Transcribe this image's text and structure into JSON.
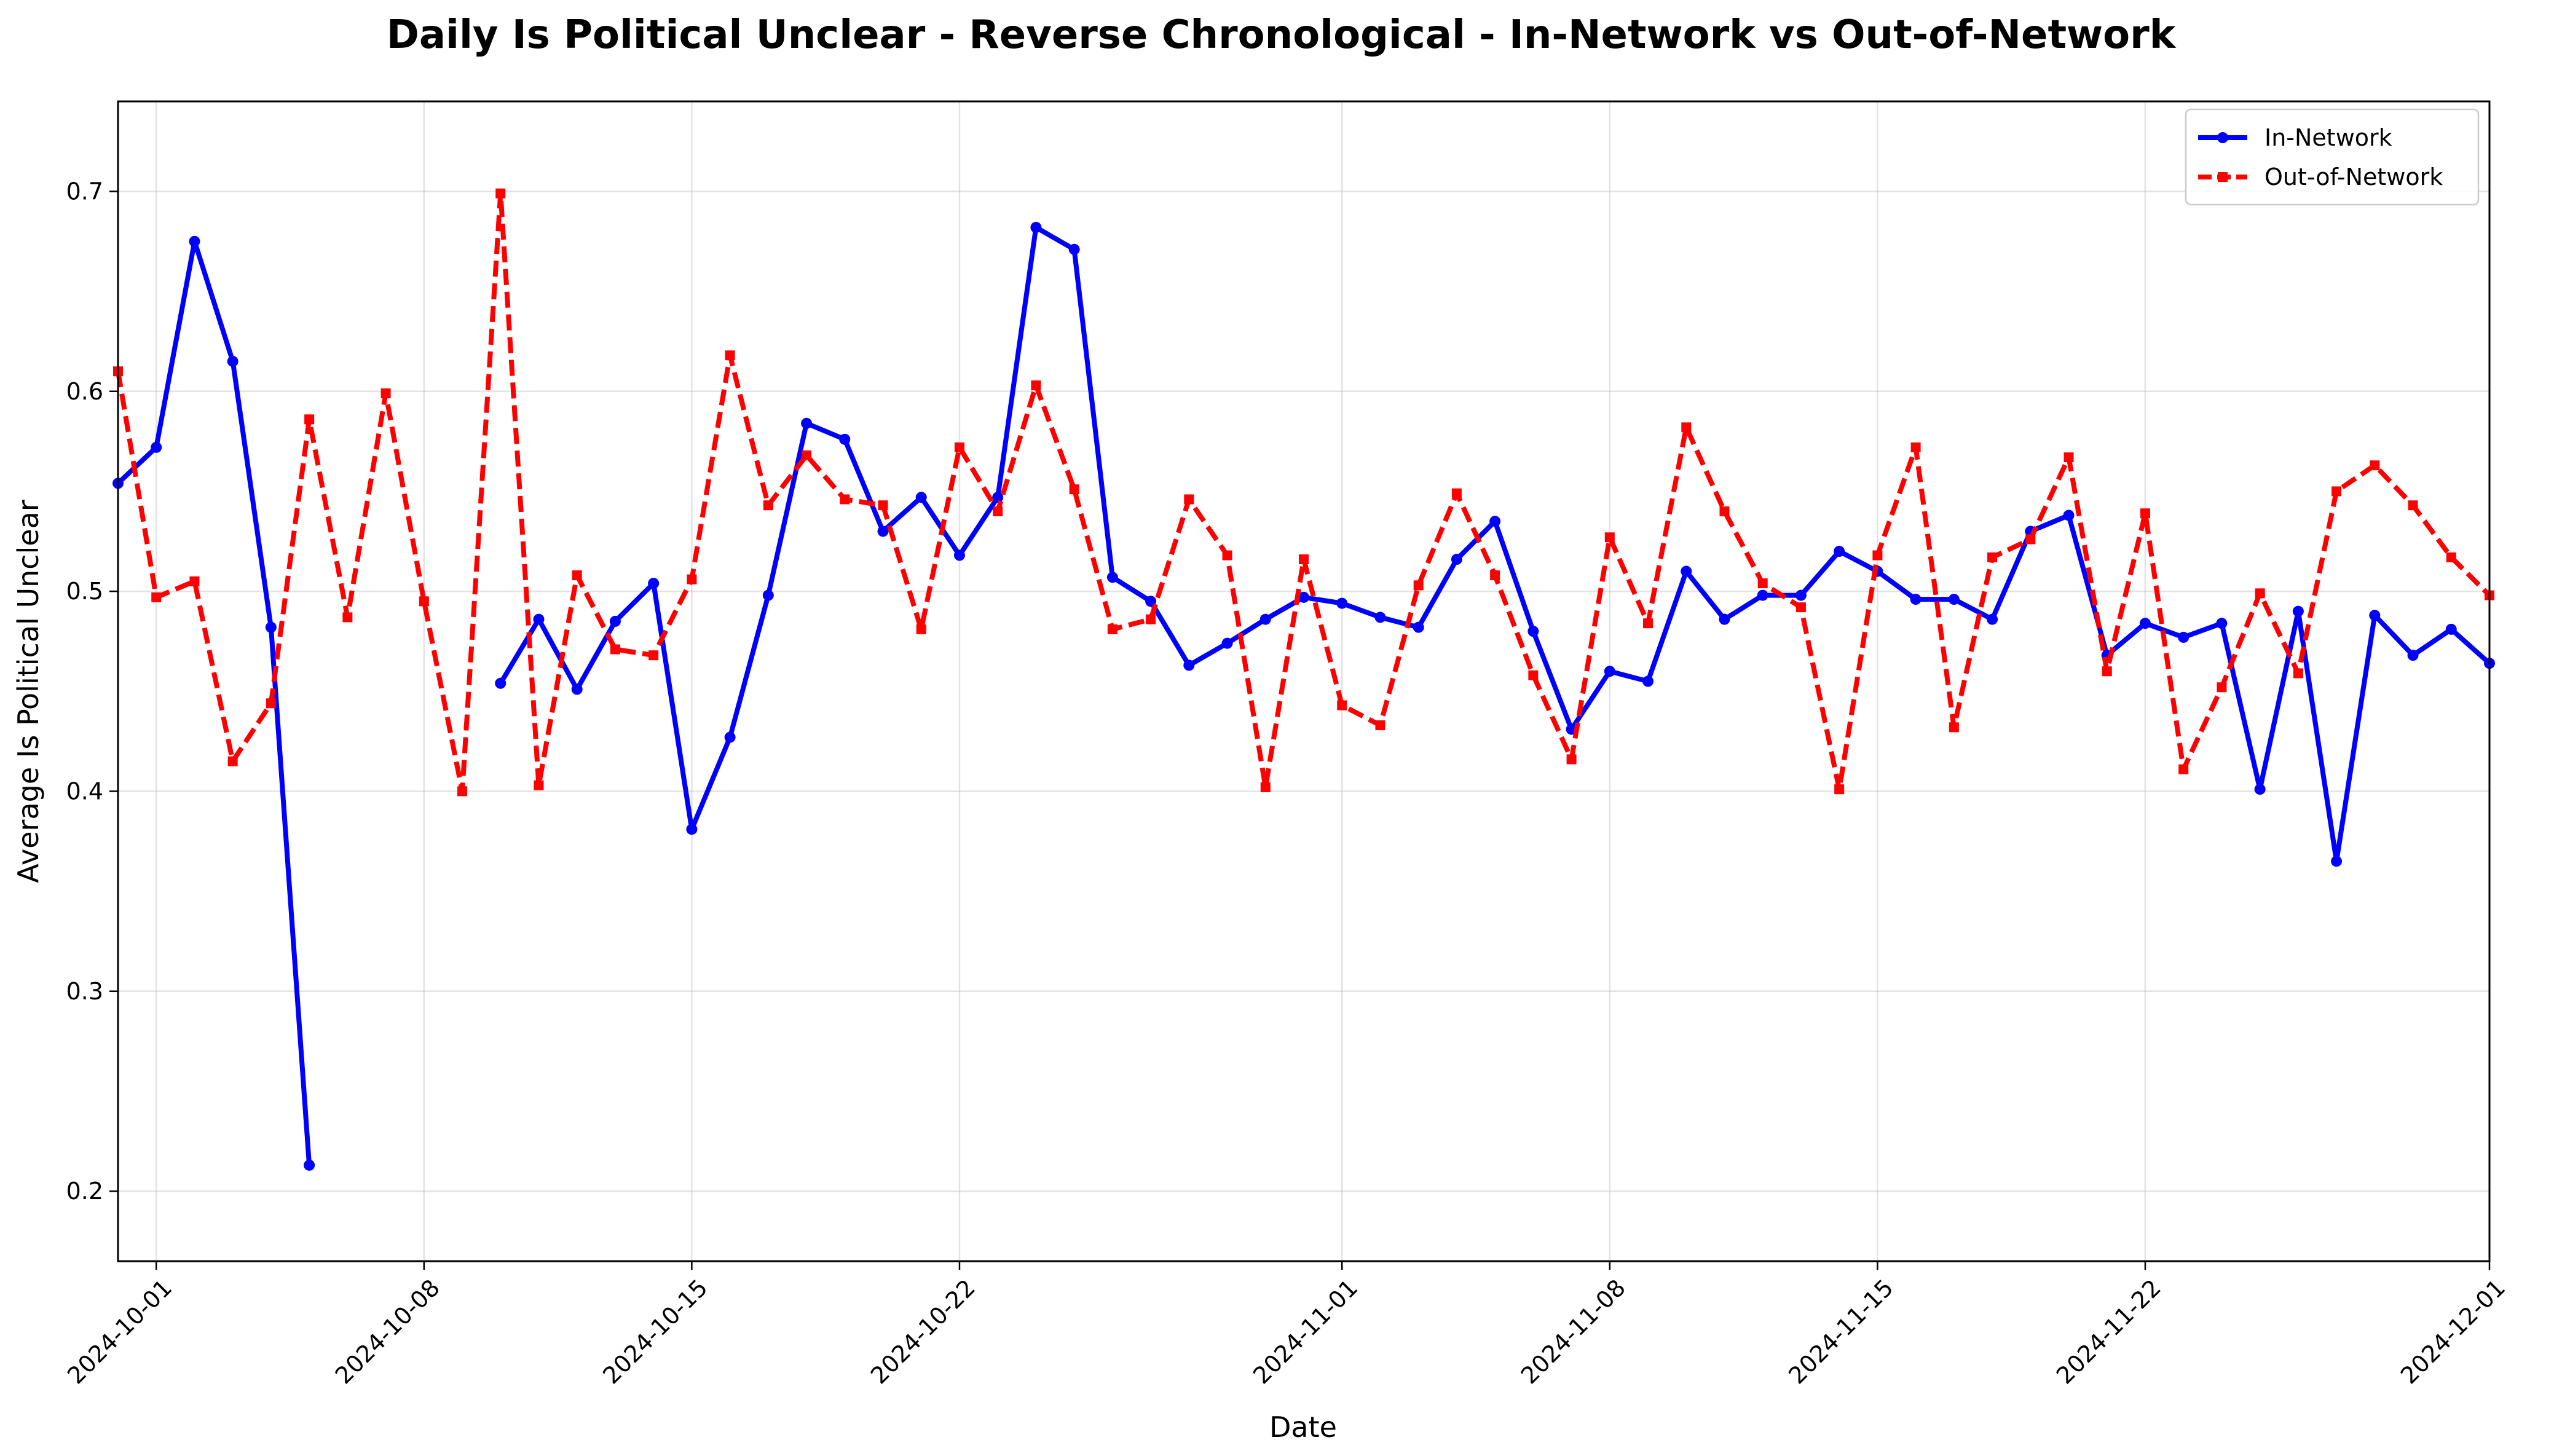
{
  "chart_data": {
    "type": "line",
    "title": "Daily Is Political Unclear - Reverse Chronological - In-Network vs Out-of-Network",
    "xlabel": "Date",
    "ylabel": "Average Is Political Unclear",
    "xlim": [
      "2024-09-30",
      "2024-12-01"
    ],
    "ylim": [
      0.165,
      0.745
    ],
    "x_ticks": [
      "2024-10-01",
      "2024-10-08",
      "2024-10-15",
      "2024-10-22",
      "2024-11-01",
      "2024-11-08",
      "2024-11-15",
      "2024-11-22",
      "2024-12-01"
    ],
    "y_ticks": [
      "0.2",
      "0.3",
      "0.4",
      "0.5",
      "0.6",
      "0.7"
    ],
    "grid": true,
    "legend_position": "top-right",
    "series": [
      {
        "name": "In-Network",
        "color": "#0000ff",
        "style": "solid",
        "marker": "circle",
        "points": [
          [
            "2024-09-30",
            0.554
          ],
          [
            "2024-10-01",
            0.572
          ],
          [
            "2024-10-02",
            0.675
          ],
          [
            "2024-10-03",
            0.615
          ],
          [
            "2024-10-04",
            0.482
          ],
          [
            "2024-10-05",
            0.213
          ],
          null,
          [
            "2024-10-10",
            0.454
          ],
          [
            "2024-10-11",
            0.486
          ],
          [
            "2024-10-12",
            0.451
          ],
          [
            "2024-10-13",
            0.485
          ],
          [
            "2024-10-14",
            0.504
          ],
          [
            "2024-10-15",
            0.381
          ],
          [
            "2024-10-16",
            0.427
          ],
          [
            "2024-10-17",
            0.498
          ],
          [
            "2024-10-18",
            0.584
          ],
          [
            "2024-10-19",
            0.576
          ],
          [
            "2024-10-20",
            0.53
          ],
          [
            "2024-10-21",
            0.547
          ],
          [
            "2024-10-22",
            0.518
          ],
          [
            "2024-10-23",
            0.547
          ],
          [
            "2024-10-24",
            0.682
          ],
          [
            "2024-10-25",
            0.671
          ],
          [
            "2024-10-26",
            0.507
          ],
          [
            "2024-10-27",
            0.495
          ],
          [
            "2024-10-28",
            0.463
          ],
          [
            "2024-10-29",
            0.474
          ],
          [
            "2024-10-30",
            0.486
          ],
          [
            "2024-10-31",
            0.497
          ],
          [
            "2024-11-01",
            0.494
          ],
          [
            "2024-11-02",
            0.487
          ],
          [
            "2024-11-03",
            0.482
          ],
          [
            "2024-11-04",
            0.516
          ],
          [
            "2024-11-05",
            0.535
          ],
          [
            "2024-11-06",
            0.48
          ],
          [
            "2024-11-07",
            0.431
          ],
          [
            "2024-11-08",
            0.46
          ],
          [
            "2024-11-09",
            0.455
          ],
          [
            "2024-11-10",
            0.51
          ],
          [
            "2024-11-11",
            0.486
          ],
          [
            "2024-11-12",
            0.498
          ],
          [
            "2024-11-13",
            0.498
          ],
          [
            "2024-11-14",
            0.52
          ],
          [
            "2024-11-15",
            0.51
          ],
          [
            "2024-11-16",
            0.496
          ],
          [
            "2024-11-17",
            0.496
          ],
          [
            "2024-11-18",
            0.486
          ],
          [
            "2024-11-19",
            0.53
          ],
          [
            "2024-11-20",
            0.538
          ],
          [
            "2024-11-21",
            0.468
          ],
          [
            "2024-11-22",
            0.484
          ],
          [
            "2024-11-23",
            0.477
          ],
          [
            "2024-11-24",
            0.484
          ],
          [
            "2024-11-25",
            0.401
          ],
          [
            "2024-11-26",
            0.49
          ],
          [
            "2024-11-27",
            0.365
          ],
          [
            "2024-11-28",
            0.488
          ],
          [
            "2024-11-29",
            0.468
          ],
          [
            "2024-11-30",
            0.481
          ],
          [
            "2024-12-01",
            0.464
          ]
        ]
      },
      {
        "name": "Out-of-Network",
        "color": "#ff0000",
        "style": "dashed",
        "marker": "square",
        "points": [
          [
            "2024-09-30",
            0.61
          ],
          [
            "2024-10-01",
            0.497
          ],
          [
            "2024-10-02",
            0.505
          ],
          [
            "2024-10-03",
            0.415
          ],
          [
            "2024-10-04",
            0.444
          ],
          [
            "2024-10-05",
            0.586
          ],
          [
            "2024-10-06",
            0.487
          ],
          [
            "2024-10-07",
            0.599
          ],
          [
            "2024-10-08",
            0.495
          ],
          [
            "2024-10-09",
            0.4
          ],
          [
            "2024-10-10",
            0.699
          ],
          [
            "2024-10-11",
            0.403
          ],
          [
            "2024-10-12",
            0.508
          ],
          [
            "2024-10-13",
            0.471
          ],
          [
            "2024-10-14",
            0.468
          ],
          [
            "2024-10-15",
            0.506
          ],
          [
            "2024-10-16",
            0.618
          ],
          [
            "2024-10-17",
            0.543
          ],
          [
            "2024-10-18",
            0.568
          ],
          [
            "2024-10-19",
            0.546
          ],
          [
            "2024-10-20",
            0.543
          ],
          [
            "2024-10-21",
            0.481
          ],
          [
            "2024-10-22",
            0.572
          ],
          [
            "2024-10-23",
            0.54
          ],
          [
            "2024-10-24",
            0.603
          ],
          [
            "2024-10-25",
            0.551
          ],
          [
            "2024-10-26",
            0.481
          ],
          [
            "2024-10-27",
            0.486
          ],
          [
            "2024-10-28",
            0.546
          ],
          [
            "2024-10-29",
            0.518
          ],
          [
            "2024-10-30",
            0.402
          ],
          [
            "2024-10-31",
            0.516
          ],
          [
            "2024-11-01",
            0.443
          ],
          [
            "2024-11-02",
            0.433
          ],
          [
            "2024-11-03",
            0.503
          ],
          [
            "2024-11-04",
            0.549
          ],
          [
            "2024-11-05",
            0.508
          ],
          [
            "2024-11-06",
            0.458
          ],
          [
            "2024-11-07",
            0.416
          ],
          [
            "2024-11-08",
            0.527
          ],
          [
            "2024-11-09",
            0.484
          ],
          [
            "2024-11-10",
            0.582
          ],
          [
            "2024-11-11",
            0.54
          ],
          [
            "2024-11-12",
            0.504
          ],
          [
            "2024-11-13",
            0.492
          ],
          [
            "2024-11-14",
            0.401
          ],
          [
            "2024-11-15",
            0.518
          ],
          [
            "2024-11-16",
            0.572
          ],
          [
            "2024-11-17",
            0.432
          ],
          [
            "2024-11-18",
            0.517
          ],
          [
            "2024-11-19",
            0.526
          ],
          [
            "2024-11-20",
            0.567
          ],
          [
            "2024-11-21",
            0.46
          ],
          [
            "2024-11-22",
            0.539
          ],
          [
            "2024-11-23",
            0.411
          ],
          [
            "2024-11-24",
            0.452
          ],
          [
            "2024-11-25",
            0.499
          ],
          [
            "2024-11-26",
            0.459
          ],
          [
            "2024-11-27",
            0.55
          ],
          [
            "2024-11-28",
            0.563
          ],
          [
            "2024-11-29",
            0.543
          ],
          [
            "2024-11-30",
            0.517
          ],
          [
            "2024-12-01",
            0.498
          ]
        ]
      }
    ]
  }
}
